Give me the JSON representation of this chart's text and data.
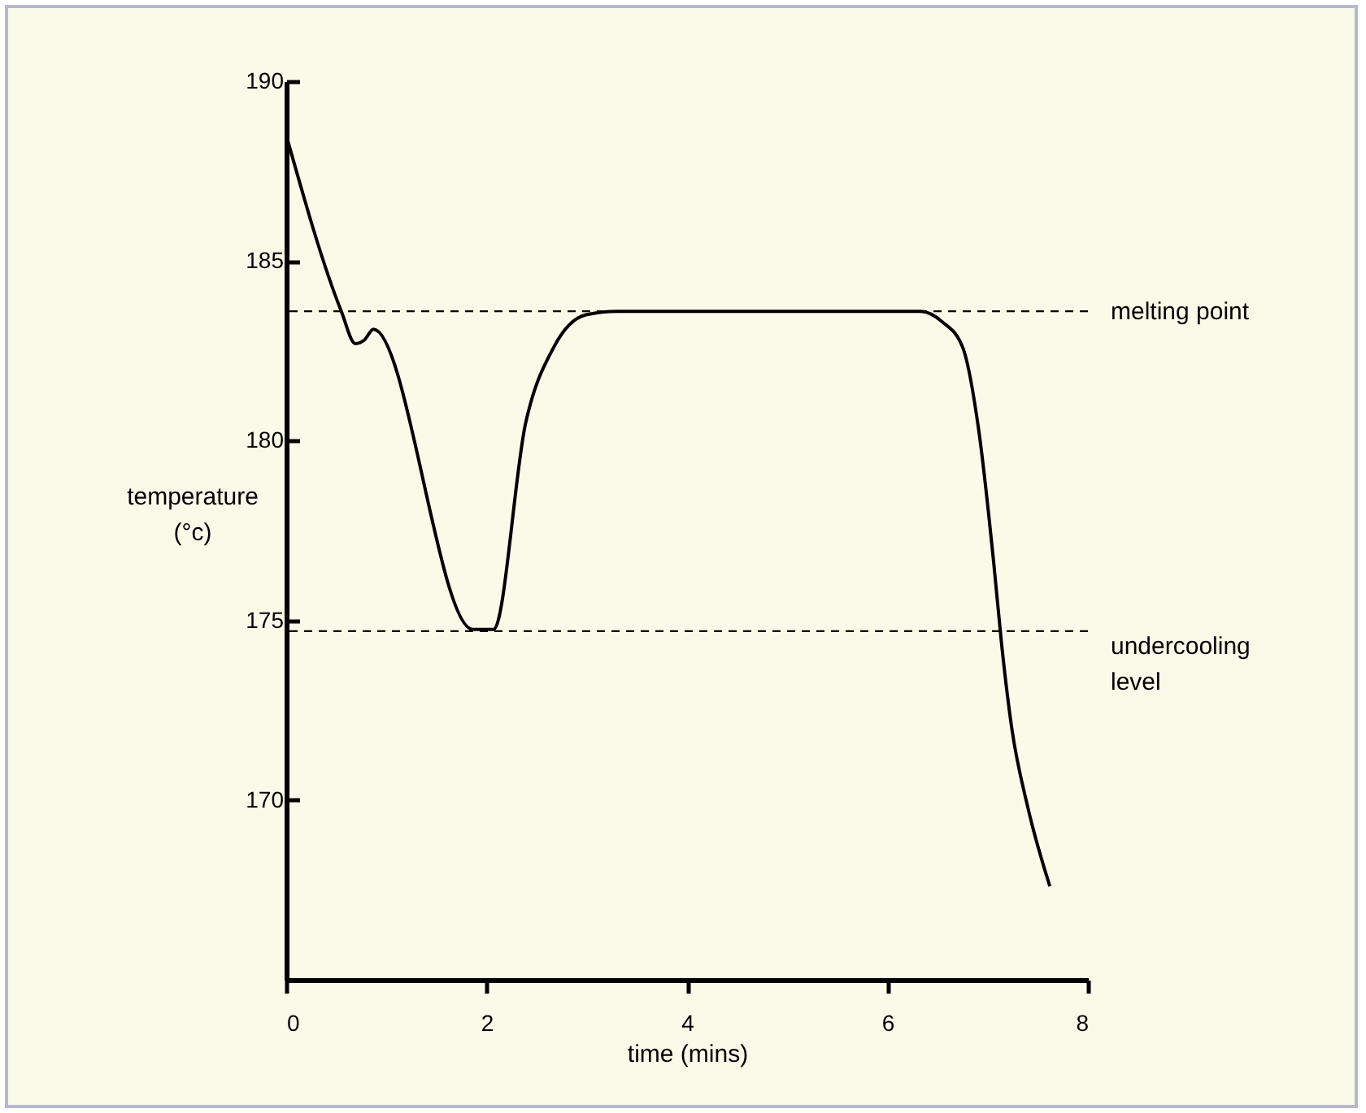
{
  "chart_data": {
    "type": "line",
    "xlabel": "time (mins)",
    "ylabel": "temperature (°c)",
    "x": [
      0,
      0.55,
      0.69,
      0.78,
      0.87,
      1.86,
      2.07,
      2.39,
      2.67,
      2.99,
      3.3,
      6.33,
      6.55,
      6.75,
      6.91,
      7.06,
      7.14,
      7.24,
      7.4,
      7.62
    ],
    "series": [
      {
        "color": "#000000",
        "values": [
          188.5,
          183.6,
          182.7,
          182.8,
          183.1,
          174.75,
          174.75,
          180.5,
          182.6,
          183.5,
          183.6,
          183.6,
          183.3,
          182.6,
          180.3,
          176.6,
          174.3,
          172.0,
          169.8,
          167.6
        ]
      }
    ],
    "xlim": [
      0,
      8
    ],
    "xticks": [
      0,
      2,
      4,
      6,
      8
    ],
    "ylim": [
      165,
      190
    ],
    "yticks": [
      170,
      175,
      180,
      185,
      190
    ],
    "ref_lines": [
      {
        "axis": "y",
        "value": 183.6,
        "label": "melting point",
        "line_style": "dashed",
        "color": "#000000"
      },
      {
        "axis": "y",
        "value": 174.7,
        "label": "undercooling\nlevel",
        "line_style": "dashed",
        "color": "#000000"
      }
    ],
    "grid": false,
    "marker": "none",
    "line_style": "solid"
  }
}
